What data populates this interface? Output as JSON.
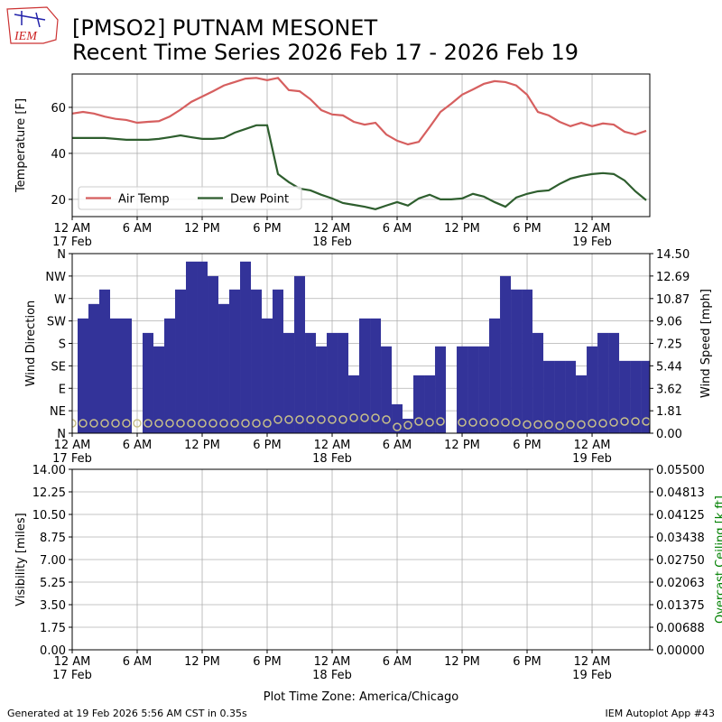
{
  "header": {
    "logo_text": "IEM",
    "title": "[PMSO2] PUTNAM MESONET",
    "subtitle": "Recent Time Series 2026 Feb 17 - 2026 Feb 19"
  },
  "footer": {
    "left": "Generated at 19 Feb 2026 5:56 AM CST in 0.35s",
    "right": "IEM Autoplot App #43"
  },
  "chart_data": [
    {
      "type": "line",
      "ylabel": "Temperature [F]",
      "grid": true,
      "legend": "lower left",
      "x": [
        0,
        1,
        2,
        3,
        4,
        5,
        6,
        7,
        8,
        9,
        10,
        11,
        12,
        13,
        14,
        15,
        16,
        17,
        18,
        19,
        20,
        21,
        22,
        23,
        24,
        25,
        26,
        27,
        28,
        29,
        30,
        31,
        32,
        33,
        34,
        35,
        36,
        37,
        38,
        39,
        40,
        41,
        42,
        43,
        44,
        45,
        46,
        47,
        48,
        49,
        50,
        51,
        52,
        53
      ],
      "xlim": [
        0,
        53.33
      ],
      "xticks": [
        {
          "value": 0,
          "label": "12 AM\n17 Feb"
        },
        {
          "value": 6,
          "label": "6 AM"
        },
        {
          "value": 12,
          "label": "12 PM"
        },
        {
          "value": 18,
          "label": "6 PM"
        },
        {
          "value": 24,
          "label": "12 AM\n18 Feb"
        },
        {
          "value": 30,
          "label": "6 AM"
        },
        {
          "value": 36,
          "label": "12 PM"
        },
        {
          "value": 42,
          "label": "6 PM"
        },
        {
          "value": 48,
          "label": "12 AM\n19 Feb"
        }
      ],
      "ylim": [
        12.5,
        74.5
      ],
      "yticks": [
        20,
        40,
        60
      ],
      "series": [
        {
          "name": "Air Temp",
          "color": "#d65f5f",
          "values": [
            57.3,
            58,
            57.3,
            56,
            55,
            54.5,
            53.3,
            53.7,
            54,
            56,
            59,
            62.4,
            64.7,
            67,
            69.5,
            71,
            72.5,
            72.8,
            71.8,
            72.8,
            67.5,
            67,
            63.5,
            58.8,
            56.9,
            56.5,
            53.7,
            52.5,
            53.3,
            48.2,
            45.5,
            43.9,
            45,
            51.4,
            58,
            61.6,
            65.5,
            67.8,
            70.2,
            71.4,
            71,
            69.5,
            65.5,
            58,
            56.5,
            53.7,
            51.8,
            53.3,
            51.8,
            53,
            52.5,
            49.4,
            48.2,
            49.8
          ]
        },
        {
          "name": "Dew Point",
          "color": "#2e5e2e",
          "values": [
            46.7,
            46.7,
            46.7,
            46.7,
            46.3,
            45.9,
            45.9,
            45.9,
            46.3,
            47,
            47.8,
            47,
            46.3,
            46.3,
            46.7,
            49,
            50.6,
            52.2,
            52.2,
            31,
            27.5,
            24.7,
            23.9,
            22,
            20.4,
            18.4,
            17.6,
            16.8,
            15.7,
            17.3,
            18.8,
            17.3,
            20.4,
            22,
            20,
            20,
            20.4,
            22.4,
            21.2,
            18.8,
            16.8,
            20.8,
            22.4,
            23.5,
            23.9,
            26.7,
            29,
            30.2,
            31,
            31.4,
            31,
            28.2,
            23.5,
            19.6
          ]
        }
      ]
    },
    {
      "type": "bar",
      "ylabel": "Wind Direction",
      "y2label": "Wind Speed [mph]",
      "grid": true,
      "x": [
        0,
        1,
        2,
        3,
        4,
        5,
        6,
        7,
        8,
        9,
        10,
        11,
        12,
        13,
        14,
        15,
        16,
        17,
        18,
        19,
        20,
        21,
        22,
        23,
        24,
        25,
        26,
        27,
        28,
        29,
        30,
        31,
        32,
        33,
        34,
        35,
        36,
        37,
        38,
        39,
        40,
        41,
        42,
        43,
        44,
        45,
        46,
        47,
        48,
        49,
        50,
        51,
        52,
        53
      ],
      "xlim": [
        0,
        53.33
      ],
      "xticks": [
        {
          "value": 0,
          "label": "12 AM\n17 Feb"
        },
        {
          "value": 6,
          "label": "6 AM"
        },
        {
          "value": 12,
          "label": "12 PM"
        },
        {
          "value": 18,
          "label": "6 PM"
        },
        {
          "value": 24,
          "label": "12 AM\n18 Feb"
        },
        {
          "value": 30,
          "label": "6 AM"
        },
        {
          "value": 36,
          "label": "12 PM"
        },
        {
          "value": 42,
          "label": "6 PM"
        },
        {
          "value": 48,
          "label": "12 AM\n19 Feb"
        }
      ],
      "ylim": [
        0,
        360
      ],
      "yticks": [
        {
          "value": 0,
          "label": "N"
        },
        {
          "value": 45,
          "label": "NE"
        },
        {
          "value": 90,
          "label": "E"
        },
        {
          "value": 135,
          "label": "SE"
        },
        {
          "value": 180,
          "label": "S"
        },
        {
          "value": 225,
          "label": "SW"
        },
        {
          "value": 270,
          "label": "W"
        },
        {
          "value": 315,
          "label": "NW"
        },
        {
          "value": 360,
          "label": "N"
        }
      ],
      "y2lim": [
        0,
        14.5
      ],
      "y2ticks": [
        {
          "value": 0,
          "label": "0.00"
        },
        1.81,
        3.62,
        5.44,
        7.25,
        9.06,
        10.87,
        12.69,
        {
          "value": 14.5,
          "label": "14.50"
        }
      ],
      "series": [
        {
          "type": "bar",
          "color": "#333399",
          "values": [
            null,
            230,
            259,
            288,
            230,
            230,
            null,
            201,
            174,
            230,
            288,
            344,
            344,
            315,
            259,
            288,
            344,
            288,
            230,
            288,
            201,
            315,
            201,
            174,
            201,
            201,
            116,
            230,
            230,
            174,
            58,
            29,
            116,
            116,
            174,
            null,
            174,
            174,
            174,
            230,
            315,
            288,
            288,
            201,
            145,
            145,
            145,
            116,
            174,
            201,
            201,
            145,
            145,
            145
          ]
        },
        {
          "type": "scatter",
          "axis": "y2",
          "color": "#c8c08a",
          "values": [
            0.8,
            0.8,
            0.8,
            0.8,
            0.8,
            0.8,
            0.8,
            0.8,
            0.8,
            0.8,
            0.8,
            0.8,
            0.8,
            0.8,
            0.8,
            0.8,
            0.8,
            0.8,
            0.8,
            1.1,
            1.1,
            1.1,
            1.1,
            1.1,
            1.1,
            1.1,
            1.24,
            1.24,
            1.24,
            1.1,
            0.5,
            0.65,
            0.95,
            0.87,
            0.95,
            null,
            0.87,
            0.87,
            0.87,
            0.87,
            0.87,
            0.87,
            0.7,
            0.7,
            0.7,
            0.6,
            0.7,
            0.7,
            0.8,
            0.8,
            0.87,
            0.95,
            0.95,
            0.95
          ]
        }
      ]
    },
    {
      "type": "line",
      "ylabel": "Visibility [miles]",
      "y2label": "Overcast Ceiling [k ft]",
      "y2label_color": "#008000",
      "xlabel": "Plot Time Zone: America/Chicago",
      "grid": true,
      "x": [],
      "xlim": [
        0,
        53.33
      ],
      "xticks": [
        {
          "value": 0,
          "label": "12 AM\n17 Feb"
        },
        {
          "value": 6,
          "label": "6 AM"
        },
        {
          "value": 12,
          "label": "12 PM"
        },
        {
          "value": 18,
          "label": "6 PM"
        },
        {
          "value": 24,
          "label": "12 AM\n18 Feb"
        },
        {
          "value": 30,
          "label": "6 AM"
        },
        {
          "value": 36,
          "label": "12 PM"
        },
        {
          "value": 42,
          "label": "6 PM"
        },
        {
          "value": 48,
          "label": "12 AM\n19 Feb"
        }
      ],
      "ylim": [
        0,
        14
      ],
      "yticks": [
        {
          "value": 0,
          "label": "0.00"
        },
        1.75,
        {
          "value": 3.5,
          "label": "3.50"
        },
        5.25,
        {
          "value": 7,
          "label": "7.00"
        },
        8.75,
        {
          "value": 10.5,
          "label": "10.50"
        },
        12.25,
        {
          "value": 14,
          "label": "14.00"
        }
      ],
      "y2lim": [
        0,
        0.055
      ],
      "y2ticks": [
        {
          "value": 0,
          "label": "0.00000"
        },
        {
          "value": 0.006875,
          "label": "0.00688"
        },
        0.01375,
        {
          "value": 0.020625,
          "label": "0.02063"
        },
        {
          "value": 0.0275,
          "label": "0.02750"
        },
        {
          "value": 0.034375,
          "label": "0.03438"
        },
        0.04125,
        {
          "value": 0.048125,
          "label": "0.04813"
        },
        {
          "value": 0.055,
          "label": "0.05500"
        }
      ],
      "series": []
    }
  ]
}
